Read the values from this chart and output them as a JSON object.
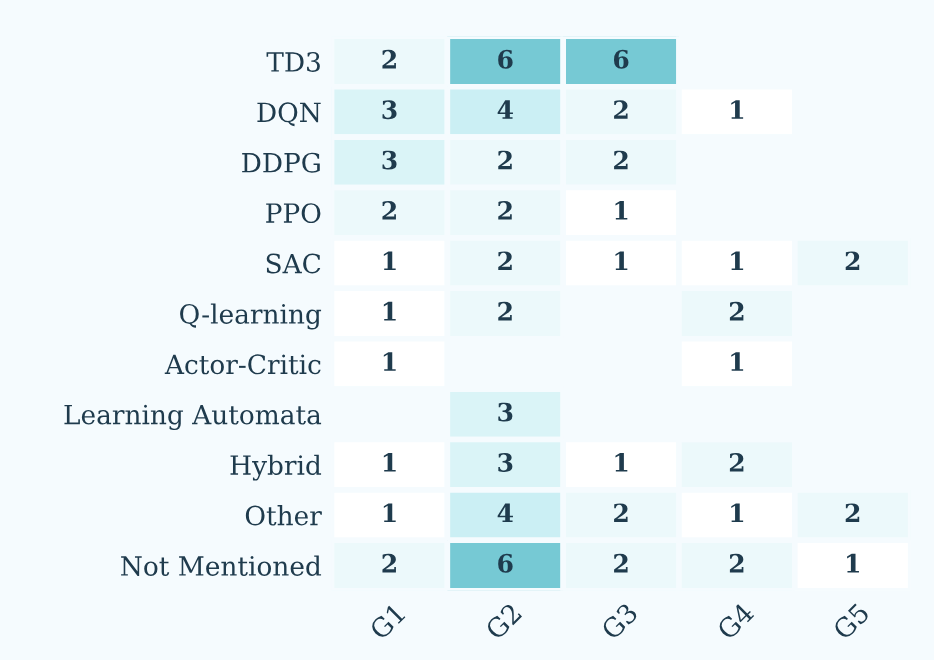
{
  "chart_data": {
    "type": "heatmap",
    "categories": [
      "G1",
      "G2",
      "G3",
      "G4",
      "G5"
    ],
    "y_categories": [
      "TD3",
      "DQN",
      "DDPG",
      "PPO",
      "SAC",
      "Q-learning",
      "Actor-Critic",
      "Learning Automata",
      "Hybrid",
      "Other",
      "Not Mentioned"
    ],
    "cells": [
      [
        2,
        6,
        6,
        null,
        null
      ],
      [
        3,
        4,
        2,
        1,
        null
      ],
      [
        3,
        2,
        2,
        null,
        null
      ],
      [
        2,
        2,
        1,
        null,
        null
      ],
      [
        1,
        2,
        1,
        1,
        2
      ],
      [
        1,
        2,
        null,
        2,
        null
      ],
      [
        1,
        null,
        null,
        1,
        null
      ],
      [
        null,
        3,
        null,
        null,
        null
      ],
      [
        1,
        3,
        1,
        2,
        null
      ],
      [
        1,
        4,
        2,
        1,
        2
      ],
      [
        2,
        6,
        2,
        2,
        1
      ]
    ],
    "data_labels": true
  }
}
